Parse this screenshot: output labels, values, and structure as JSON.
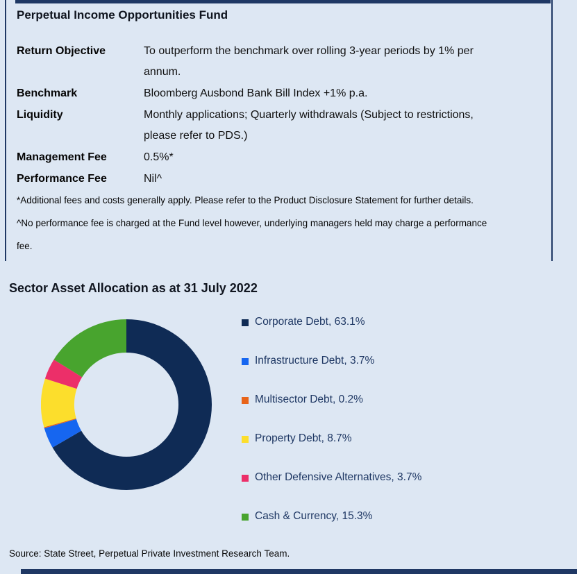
{
  "page": {
    "background_color": "#dde7f3",
    "accent_bar_color": "#1f3864"
  },
  "fund": {
    "title": "Perpetual Income Opportunities Fund",
    "details": [
      {
        "label": "Return Objective",
        "value": "To outperform the benchmark over rolling 3-year periods by 1% per\nannum."
      },
      {
        "label": "Benchmark",
        "value": "Bloomberg Ausbond Bank Bill Index +1% p.a."
      },
      {
        "label": "Liquidity",
        "value": "Monthly applications; Quarterly withdrawals (Subject to restrictions,\nplease refer to PDS.)"
      },
      {
        "label": "Management Fee",
        "value": "0.5%*"
      },
      {
        "label": "Performance Fee",
        "value": "Nil^"
      }
    ],
    "footnotes": [
      "*Additional fees and costs generally apply. Please refer to the Product Disclosure Statement for further details.",
      "^No performance fee is charged at the Fund level however, underlying managers held may charge a performance\nfee."
    ]
  },
  "allocation_section": {
    "title": "Sector Asset Allocation as at 31 July 2022",
    "source": "Source: State Street, Perpetual Private Investment Research Team."
  },
  "chart_data": {
    "type": "pie",
    "subtype": "donut",
    "title": "Sector Asset Allocation as at 31 July 2022",
    "legend_position": "right",
    "direction": "clockwise",
    "start_angle_deg": 0,
    "inner_radius_ratio": 0.61,
    "value_suffix": "%",
    "segments": [
      {
        "label": "Corporate Debt",
        "value": 63.1,
        "color": "#0f2b55"
      },
      {
        "label": "Infrastructure Debt",
        "value": 3.7,
        "color": "#1666f0"
      },
      {
        "label": "Multisector Debt",
        "value": 0.2,
        "color": "#e8641a"
      },
      {
        "label": "Property Debt",
        "value": 8.7,
        "color": "#fcde2c"
      },
      {
        "label": "Other Defensive Alternatives",
        "value": 3.7,
        "color": "#ec2f69"
      },
      {
        "label": "Cash & Currency",
        "value": 15.3,
        "color": "#48a42e"
      }
    ]
  }
}
